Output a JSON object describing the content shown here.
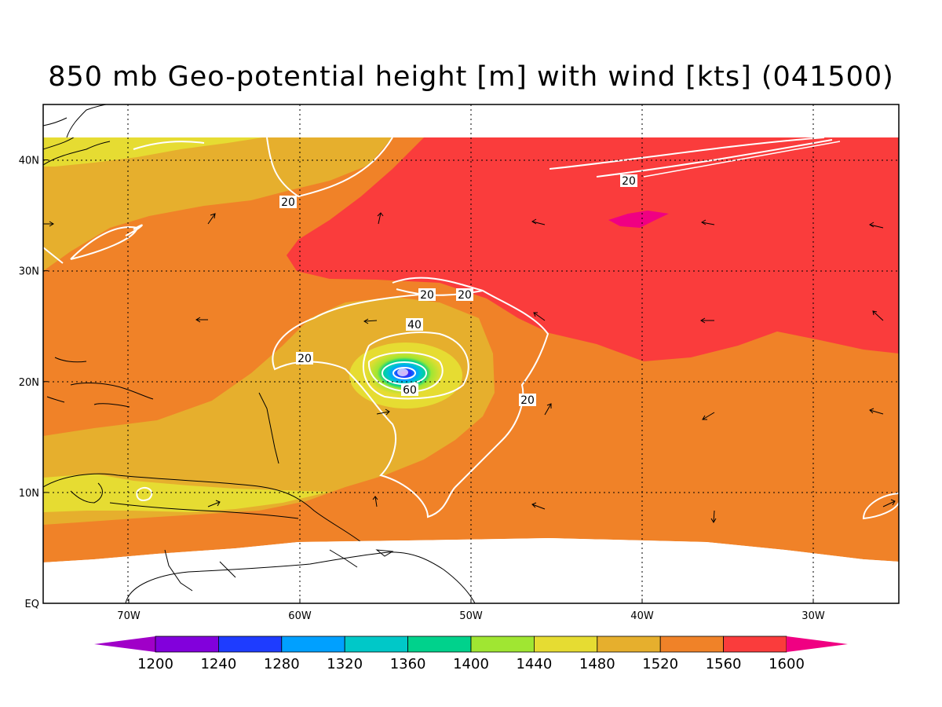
{
  "title": "850 mb Geo-potential height [m] with wind [kts] (041500)",
  "axes": {
    "lon_min": -75,
    "lon_max": -25,
    "lat_min": 0,
    "lat_max": 45,
    "x_ticks": [
      {
        "value": -70,
        "label": "70W"
      },
      {
        "value": -60,
        "label": "60W"
      },
      {
        "value": -50,
        "label": "50W"
      },
      {
        "value": -40,
        "label": "40W"
      },
      {
        "value": -30,
        "label": "30W"
      }
    ],
    "y_ticks": [
      {
        "value": 0,
        "label": "EQ"
      },
      {
        "value": 10,
        "label": "10N"
      },
      {
        "value": 20,
        "label": "20N"
      },
      {
        "value": 30,
        "label": "30N"
      },
      {
        "value": 40,
        "label": "40N"
      }
    ],
    "grid": "dotted"
  },
  "colorbar": {
    "levels": [
      1200,
      1240,
      1280,
      1320,
      1360,
      1400,
      1440,
      1480,
      1520,
      1560,
      1600
    ],
    "colors": [
      "#a000c8",
      "#8200dc",
      "#1e3cff",
      "#00a0ff",
      "#00c8c8",
      "#00d28c",
      "#a0e632",
      "#e6dc32",
      "#e6af2d",
      "#f08228",
      "#fa3c3c",
      "#f00082"
    ]
  },
  "wind_contour_labels": [
    "20",
    "20",
    "20",
    "20",
    "20",
    "20",
    "40",
    "60"
  ],
  "colors": {
    "red": "#fa3c3c",
    "orange": "#f08228",
    "gold": "#e6af2d",
    "yellow": "#e6dc32",
    "magenta": "#f00082",
    "contour": "#ffffff"
  }
}
